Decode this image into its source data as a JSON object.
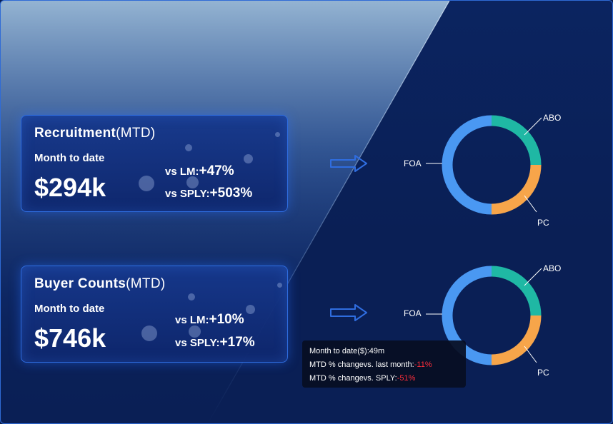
{
  "colors": {
    "abo": "#1fb8a4",
    "pc": "#f7a54a",
    "foa": "#4a98f2",
    "negative": "#ff2e3b",
    "card_border": "#2f6de0"
  },
  "cards": [
    {
      "title": "Recruitment",
      "title_suffix": "(MTD)",
      "subtitle": "Month to date",
      "value": "$294k",
      "vs_lm_label": "vs LM:",
      "vs_lm_value": "+47%",
      "vs_sply_label": "vs SPLY:",
      "vs_sply_value": "+503%"
    },
    {
      "title": "Buyer Counts",
      "title_suffix": "(MTD)",
      "subtitle": "Month to date",
      "value": "$746k",
      "vs_lm_label": "vs LM:",
      "vs_lm_value": "+10%",
      "vs_sply_label": "vs SPLY:",
      "vs_sply_value": "+17%"
    }
  ],
  "donuts": [
    {
      "labels": {
        "abo": "ABO",
        "pc": "PC",
        "foa": "FOA"
      },
      "shares": {
        "abo": 0.25,
        "pc": 0.25,
        "foa": 0.5
      }
    },
    {
      "labels": {
        "abo": "ABO",
        "pc": "PC",
        "foa": "FOA"
      },
      "shares": {
        "abo": 0.25,
        "pc": 0.25,
        "foa": 0.5
      }
    }
  ],
  "tooltip": {
    "line1": "Month to date($):49m",
    "line2_label": "MTD % changevs. last month:",
    "line2_value": "-11%",
    "line3_label": "MTD % changevs. SPLY:",
    "line3_value": "-51%"
  },
  "icons": {
    "arrow": "right-arrow-icon"
  }
}
